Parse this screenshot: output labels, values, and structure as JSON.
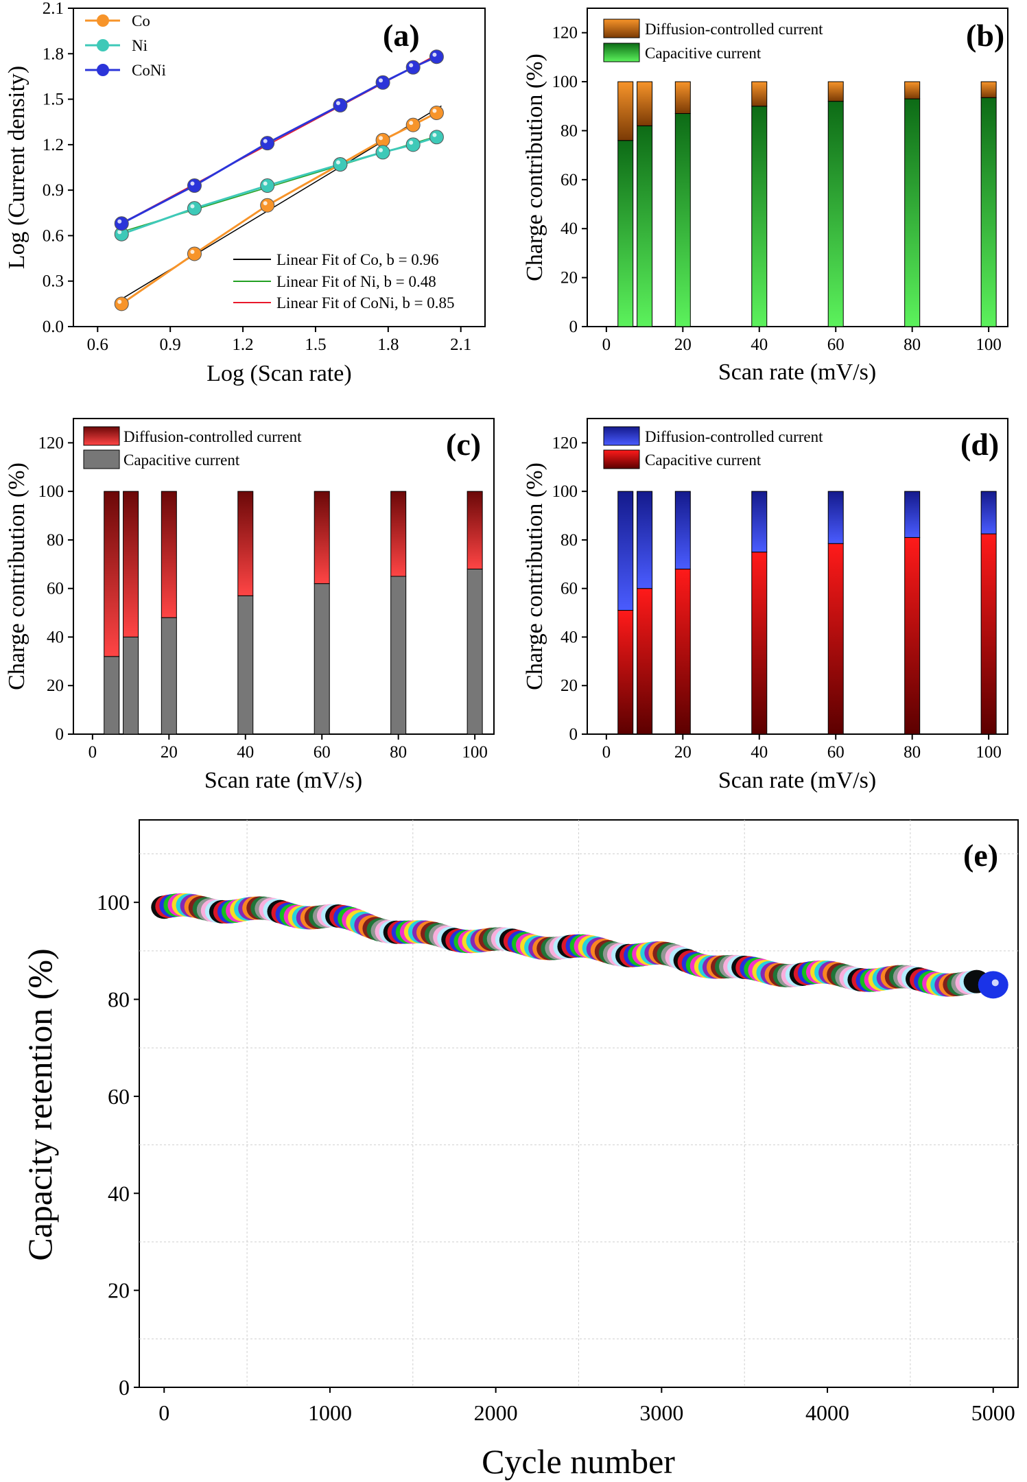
{
  "colors": {
    "co": "#f7942a",
    "ni": "#3ec9b8",
    "coni": "#2b34d9",
    "fit_co": "#000000",
    "fit_ni": "#22a022",
    "fit_coni": "#e8182b"
  },
  "chart_data": [
    {
      "panel": "(a)",
      "type": "line",
      "xlabel": "Log (Scan rate)",
      "ylabel": "Log (Current density)",
      "xlim": [
        0.5,
        2.2
      ],
      "ylim": [
        0.0,
        2.1
      ],
      "xticks": [
        "0.6",
        "0.9",
        "1.2",
        "1.5",
        "1.8",
        "2.1"
      ],
      "yticks": [
        "0.0",
        "0.3",
        "0.6",
        "0.9",
        "1.2",
        "1.5",
        "1.8",
        "2.1"
      ],
      "x": [
        0.699,
        1.0,
        1.301,
        1.602,
        1.778,
        1.903,
        2.0
      ],
      "series": [
        {
          "name": "Co",
          "values": [
            0.15,
            0.48,
            0.8,
            1.07,
            1.23,
            1.33,
            1.41
          ]
        },
        {
          "name": "Ni",
          "values": [
            0.61,
            0.78,
            0.93,
            1.07,
            1.15,
            1.2,
            1.25
          ]
        },
        {
          "name": "CoNi",
          "values": [
            0.68,
            0.93,
            1.21,
            1.46,
            1.61,
            1.71,
            1.78
          ]
        }
      ],
      "fits": [
        {
          "label": "Linear Fit of Co, b = 0.96",
          "series": "Co"
        },
        {
          "label": "Linear Fit of Ni, b = 0.48",
          "series": "Ni"
        },
        {
          "label": "Linear Fit of CoNi, b = 0.85",
          "series": "CoNi"
        }
      ]
    },
    {
      "panel": "(b)",
      "type": "bar",
      "stacked": true,
      "xlabel": "Scan rate (mV/s)",
      "ylabel": "Charge contribution (%)",
      "xlim": [
        -5,
        105
      ],
      "ylim": [
        0,
        130
      ],
      "xticks": [
        "0",
        "20",
        "40",
        "60",
        "80",
        "100"
      ],
      "yticks": [
        "0",
        "20",
        "40",
        "60",
        "80",
        "100",
        "120"
      ],
      "categories": [
        5,
        10,
        20,
        40,
        60,
        80,
        100
      ],
      "series": [
        {
          "name": "Capacitive current",
          "values": [
            76,
            82,
            87,
            90,
            92,
            93,
            93.5
          ]
        },
        {
          "name": "Diffusion-controlled current",
          "values": [
            24,
            18,
            13,
            10,
            8,
            7,
            6.5
          ]
        }
      ],
      "legend": [
        "Diffusion-controlled current",
        "Capacitive current"
      ]
    },
    {
      "panel": "(c)",
      "type": "bar",
      "stacked": true,
      "xlabel": "Scan rate (mV/s)",
      "ylabel": "Charge contribution (%)",
      "xlim": [
        -5,
        105
      ],
      "ylim": [
        0,
        130
      ],
      "xticks": [
        "0",
        "20",
        "40",
        "60",
        "80",
        "100"
      ],
      "yticks": [
        "0",
        "20",
        "40",
        "60",
        "80",
        "100",
        "120"
      ],
      "categories": [
        5,
        10,
        20,
        40,
        60,
        80,
        100
      ],
      "series": [
        {
          "name": "Capacitive current",
          "values": [
            32,
            40,
            48,
            57,
            62,
            65,
            68
          ]
        },
        {
          "name": "Diffusion-controlled current",
          "values": [
            68,
            60,
            52,
            43,
            38,
            35,
            32
          ]
        }
      ],
      "legend": [
        "Diffusion-controlled current",
        "Capacitive current"
      ]
    },
    {
      "panel": "(d)",
      "type": "bar",
      "stacked": true,
      "xlabel": "Scan rate (mV/s)",
      "ylabel": "Charge contribution (%)",
      "xlim": [
        -5,
        105
      ],
      "ylim": [
        0,
        130
      ],
      "xticks": [
        "0",
        "20",
        "40",
        "60",
        "80",
        "100"
      ],
      "yticks": [
        "0",
        "20",
        "40",
        "60",
        "80",
        "100",
        "120"
      ],
      "categories": [
        5,
        10,
        20,
        40,
        60,
        80,
        100
      ],
      "series": [
        {
          "name": "Capacitive current",
          "values": [
            51,
            60,
            68,
            75,
            78.5,
            81,
            82.5
          ]
        },
        {
          "name": "Diffusion-controlled current",
          "values": [
            49,
            40,
            32,
            25,
            21.5,
            19,
            17.5
          ]
        }
      ],
      "legend": [
        "Diffusion-controlled current",
        "Capacitive current"
      ]
    },
    {
      "panel": "(e)",
      "type": "scatter",
      "xlabel": "Cycle number",
      "ylabel": "Capacity retention (%)",
      "xlim": [
        -150,
        5150
      ],
      "ylim": [
        0,
        117
      ],
      "xticks": [
        "0",
        "1000",
        "2000",
        "3000",
        "4000",
        "5000"
      ],
      "yticks": [
        "0",
        "20",
        "40",
        "60",
        "80",
        "100"
      ],
      "x": [
        0,
        500,
        1000,
        1500,
        2000,
        2500,
        3000,
        3500,
        4000,
        4500,
        5000
      ],
      "values": [
        99,
        98.5,
        97,
        93.5,
        92,
        90.5,
        89,
        86,
        85,
        84,
        83
      ]
    }
  ]
}
